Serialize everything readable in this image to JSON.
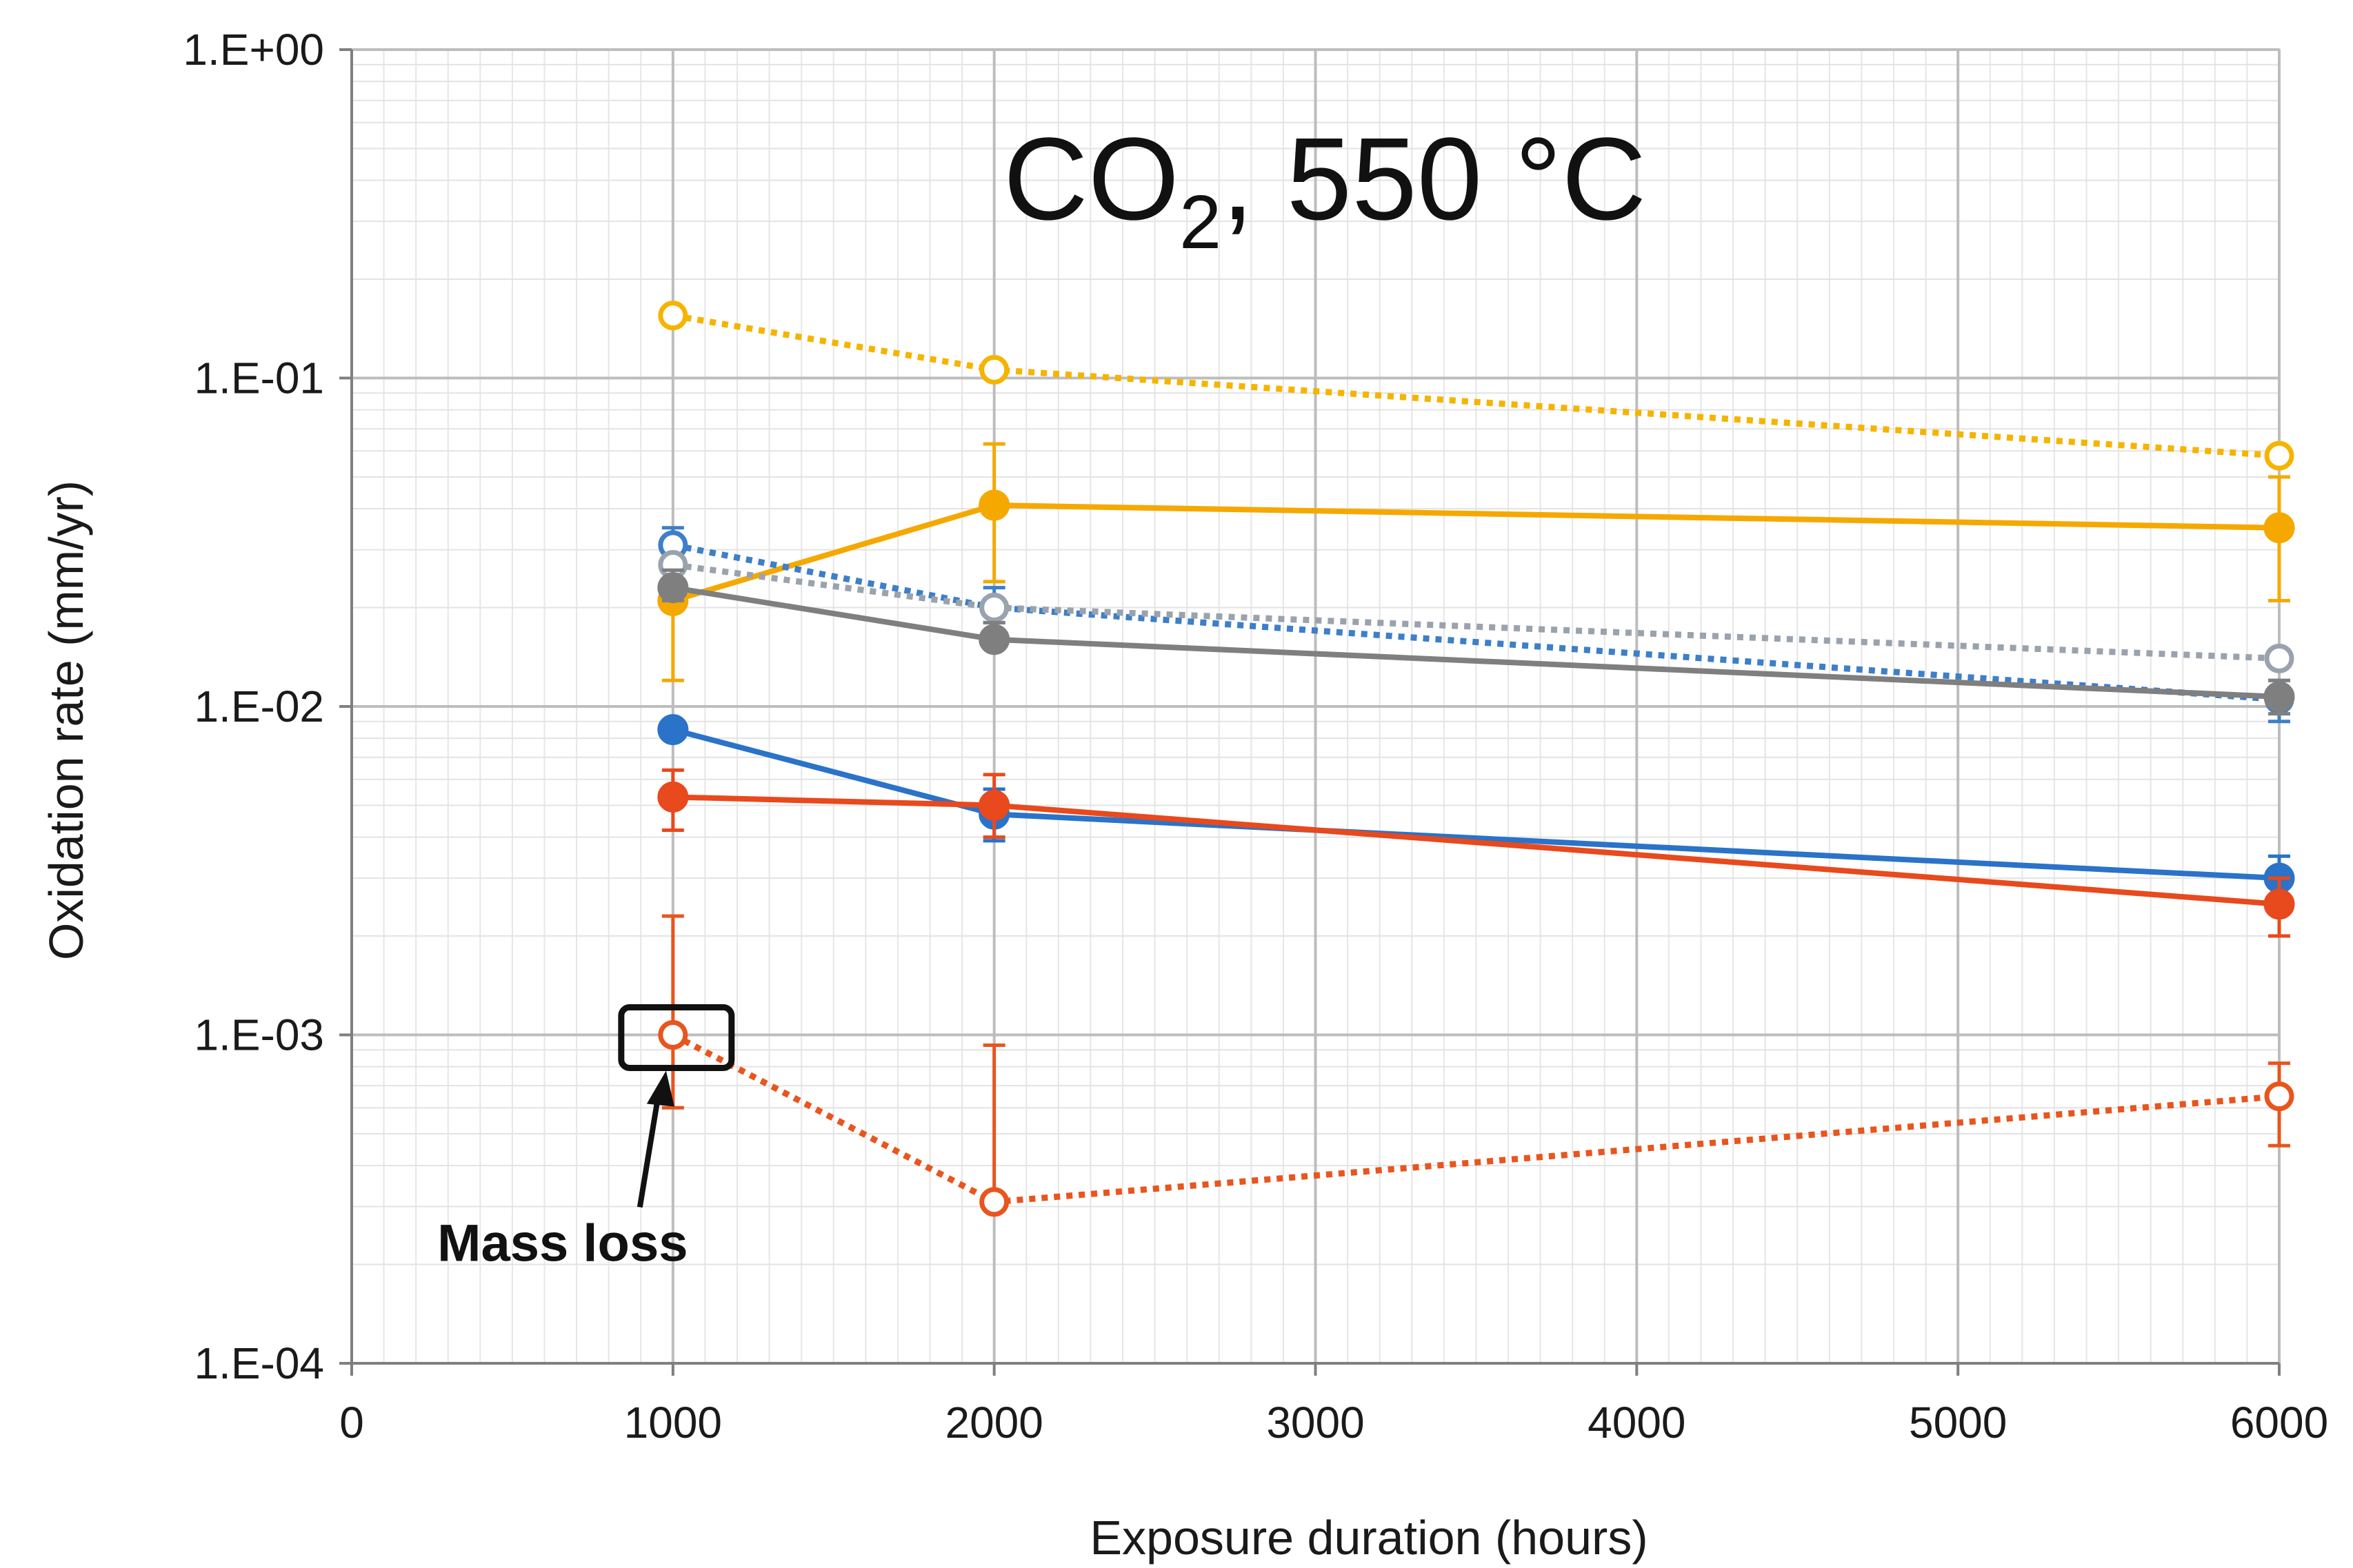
{
  "chart_data": {
    "type": "line",
    "title_parts": {
      "main": "CO",
      "sub": "2",
      "rest": ", 550 °C"
    },
    "xlabel": "Exposure duration (hours)",
    "ylabel": "Oxidation rate (mm/yr)",
    "xlim": [
      0,
      6000
    ],
    "ylim": [
      0.0001,
      1
    ],
    "yscale": "log",
    "grid": true,
    "x_ticks": [
      "0",
      "1000",
      "2000",
      "3000",
      "4000",
      "5000",
      "6000"
    ],
    "y_ticks": [
      "1.E-04",
      "1.E-03",
      "1.E-02",
      "1.E-01",
      "1.E+00"
    ],
    "annotation": {
      "text": "Mass loss",
      "x": 1000,
      "y": 0.001
    },
    "series": [
      {
        "color": "#f5b400",
        "style": "dotted",
        "marker": "open",
        "points": [
          {
            "x": 1000,
            "y": 0.155
          },
          {
            "x": 2000,
            "y": 0.106
          },
          {
            "x": 6000,
            "y": 0.058
          }
        ]
      },
      {
        "color": "#f5a800",
        "style": "solid",
        "marker": "filled",
        "points": [
          {
            "x": 1000,
            "y": 0.021,
            "lo": 0.012,
            "hi": 0.026
          },
          {
            "x": 2000,
            "y": 0.041,
            "lo": 0.024,
            "hi": 0.063
          },
          {
            "x": 6000,
            "y": 0.035,
            "lo": 0.021,
            "hi": 0.05
          }
        ]
      },
      {
        "color": "#3d7fc8",
        "style": "dotted",
        "marker": "open",
        "points": [
          {
            "x": 1000,
            "y": 0.031,
            "lo": 0.027,
            "hi": 0.035
          },
          {
            "x": 2000,
            "y": 0.02,
            "lo": 0.018,
            "hi": 0.023
          },
          {
            "x": 6000,
            "y": 0.0105,
            "lo": 0.009,
            "hi": 0.012
          }
        ]
      },
      {
        "color": "#9aa3ad",
        "style": "dotted",
        "marker": "open",
        "points": [
          {
            "x": 1000,
            "y": 0.027
          },
          {
            "x": 2000,
            "y": 0.02
          },
          {
            "x": 6000,
            "y": 0.014
          }
        ]
      },
      {
        "color": "#7f7f7f",
        "style": "solid",
        "marker": "filled",
        "points": [
          {
            "x": 1000,
            "y": 0.023,
            "lo": 0.021,
            "hi": 0.026
          },
          {
            "x": 2000,
            "y": 0.016,
            "lo": 0.015,
            "hi": 0.018
          },
          {
            "x": 6000,
            "y": 0.0107,
            "lo": 0.0095,
            "hi": 0.012
          }
        ]
      },
      {
        "color": "#2a73c8",
        "style": "solid",
        "marker": "filled",
        "points": [
          {
            "x": 1000,
            "y": 0.0085
          },
          {
            "x": 2000,
            "y": 0.0047,
            "lo": 0.0039,
            "hi": 0.0056
          },
          {
            "x": 6000,
            "y": 0.003,
            "lo": 0.0026,
            "hi": 0.0035
          }
        ]
      },
      {
        "color": "#e8491d",
        "style": "solid",
        "marker": "filled",
        "points": [
          {
            "x": 1000,
            "y": 0.0053,
            "lo": 0.0042,
            "hi": 0.0064
          },
          {
            "x": 2000,
            "y": 0.005,
            "lo": 0.004,
            "hi": 0.0062
          },
          {
            "x": 6000,
            "y": 0.0025,
            "lo": 0.002,
            "hi": 0.003
          }
        ]
      },
      {
        "color": "#e8551d",
        "style": "dotted",
        "marker": "open",
        "points": [
          {
            "x": 1000,
            "y": 0.001,
            "lo": 0.0006,
            "hi": 0.0023
          },
          {
            "x": 2000,
            "y": 0.00031,
            "lo": 0.0003,
            "hi": 0.00093
          },
          {
            "x": 6000,
            "y": 0.00065,
            "lo": 0.00046,
            "hi": 0.00082
          }
        ]
      }
    ]
  }
}
